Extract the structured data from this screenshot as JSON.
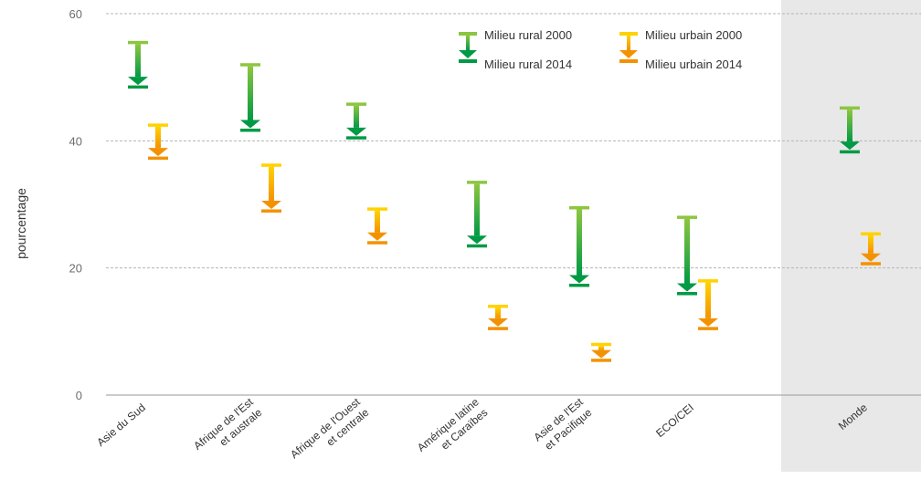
{
  "chart_data": {
    "type": "range-arrow",
    "ylabel": "pourcentage",
    "ylim": [
      0,
      60
    ],
    "yticks": [
      0,
      20,
      40,
      60
    ],
    "grid": true,
    "legend_position": "top-right",
    "categories": [
      [
        "Asie du Sud"
      ],
      [
        "Afrique de l'Est",
        "et australe"
      ],
      [
        "Afrique de l'Ouest",
        "et centrale"
      ],
      [
        "Amérique latine",
        "et Caraïbes"
      ],
      [
        "Asie de l'Est",
        "et Pacifique"
      ],
      [
        "ECO/CEI"
      ],
      [
        "Monde"
      ]
    ],
    "highlighted_category": "Monde",
    "series": [
      {
        "name": "Milieu rural",
        "color_start": "#8cc63f",
        "color_end": "#009a44",
        "start_year": "2000",
        "end_year": "2014",
        "values_2000": [
          55.5,
          52,
          45.8,
          33.5,
          29.5,
          28,
          45.2
        ],
        "values_2014": [
          48.5,
          41.7,
          40.5,
          23.5,
          17.3,
          16,
          38.3
        ]
      },
      {
        "name": "Milieu urbain",
        "color_start": "#ffd200",
        "color_end": "#f39200",
        "start_year": "2000",
        "end_year": "2014",
        "values_2000": [
          42.5,
          36.2,
          29.3,
          14,
          8,
          18,
          25.4
        ],
        "values_2014": [
          37.3,
          29,
          24,
          10.5,
          5.5,
          10.5,
          20.7
        ]
      }
    ]
  },
  "legend": {
    "rural_2000": "Milieu rural 2000",
    "rural_2014": "Milieu rural 2014",
    "urban_2000": "Milieu urbain 2000",
    "urban_2014": "Milieu urbain 2014"
  }
}
